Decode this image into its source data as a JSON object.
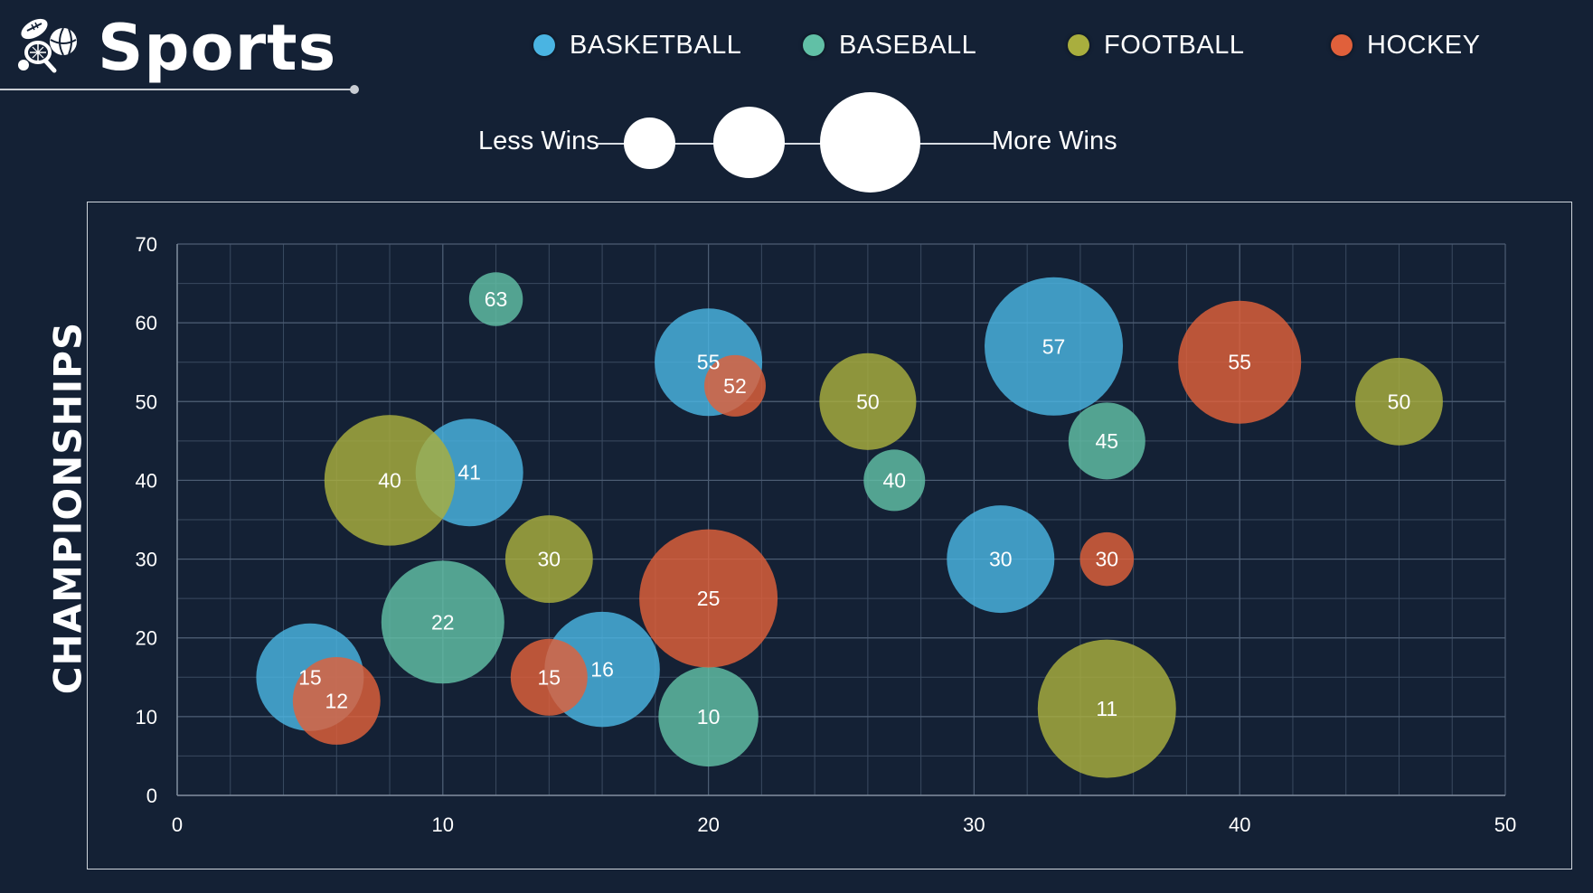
{
  "header": {
    "title": "Sports",
    "logo_icon": "sports-balls-icon"
  },
  "legend": {
    "items": [
      {
        "label": "BASKETBALL",
        "color": "#4ab4e2"
      },
      {
        "label": "BASEBALL",
        "color": "#61c0a6"
      },
      {
        "label": "FOOTBALL",
        "color": "#a9ae3e"
      },
      {
        "label": "HOCKEY",
        "color": "#e0603b"
      }
    ]
  },
  "size_legend": {
    "less_label": "Less Wins",
    "more_label": "More Wins"
  },
  "chart_data": {
    "type": "bubble",
    "title": "",
    "xlabel": "",
    "ylabel": "CHAMPIONSHIPS",
    "xlim": [
      0,
      50
    ],
    "ylim": [
      0,
      70
    ],
    "x_ticks": [
      0,
      10,
      20,
      30,
      40,
      50
    ],
    "y_ticks": [
      0,
      10,
      20,
      30,
      40,
      50,
      60,
      70
    ],
    "grid": true,
    "legend_position": "top",
    "size_meaning": "wins",
    "series": [
      {
        "name": "BASKETBALL",
        "color": "#4ab4e2",
        "points": [
          {
            "x": 5,
            "y": 15,
            "size": 7,
            "label": "15"
          },
          {
            "x": 11,
            "y": 41,
            "size": 7,
            "label": "41"
          },
          {
            "x": 16,
            "y": 16,
            "size": 7.5,
            "label": "16"
          },
          {
            "x": 20,
            "y": 55,
            "size": 7,
            "label": "55"
          },
          {
            "x": 31,
            "y": 30,
            "size": 7,
            "label": "30"
          },
          {
            "x": 33,
            "y": 57,
            "size": 9,
            "label": "57"
          }
        ]
      },
      {
        "name": "BASEBALL",
        "color": "#61c0a6",
        "points": [
          {
            "x": 12,
            "y": 63,
            "size": 3.5,
            "label": "63"
          },
          {
            "x": 10,
            "y": 22,
            "size": 8,
            "label": "22"
          },
          {
            "x": 20,
            "y": 10,
            "size": 6.5,
            "label": "10"
          },
          {
            "x": 27,
            "y": 40,
            "size": 4,
            "label": "40"
          },
          {
            "x": 35,
            "y": 45,
            "size": 5,
            "label": "45"
          }
        ]
      },
      {
        "name": "FOOTBALL",
        "color": "#a9ae3e",
        "points": [
          {
            "x": 8,
            "y": 40,
            "size": 8.5,
            "label": "40"
          },
          {
            "x": 14,
            "y": 30,
            "size": 5.7,
            "label": "30"
          },
          {
            "x": 26,
            "y": 50,
            "size": 6.3,
            "label": "50"
          },
          {
            "x": 35,
            "y": 11,
            "size": 9,
            "label": "11"
          },
          {
            "x": 46,
            "y": 50,
            "size": 5.7,
            "label": "50"
          }
        ]
      },
      {
        "name": "HOCKEY",
        "color": "#e0603b",
        "points": [
          {
            "x": 6,
            "y": 12,
            "size": 5.7,
            "label": "12"
          },
          {
            "x": 14,
            "y": 15,
            "size": 5,
            "label": "15"
          },
          {
            "x": 21,
            "y": 52,
            "size": 4,
            "label": "52"
          },
          {
            "x": 20,
            "y": 25,
            "size": 9,
            "label": "25"
          },
          {
            "x": 35,
            "y": 30,
            "size": 3.5,
            "label": "30"
          },
          {
            "x": 40,
            "y": 55,
            "size": 8,
            "label": "55"
          }
        ]
      }
    ]
  }
}
